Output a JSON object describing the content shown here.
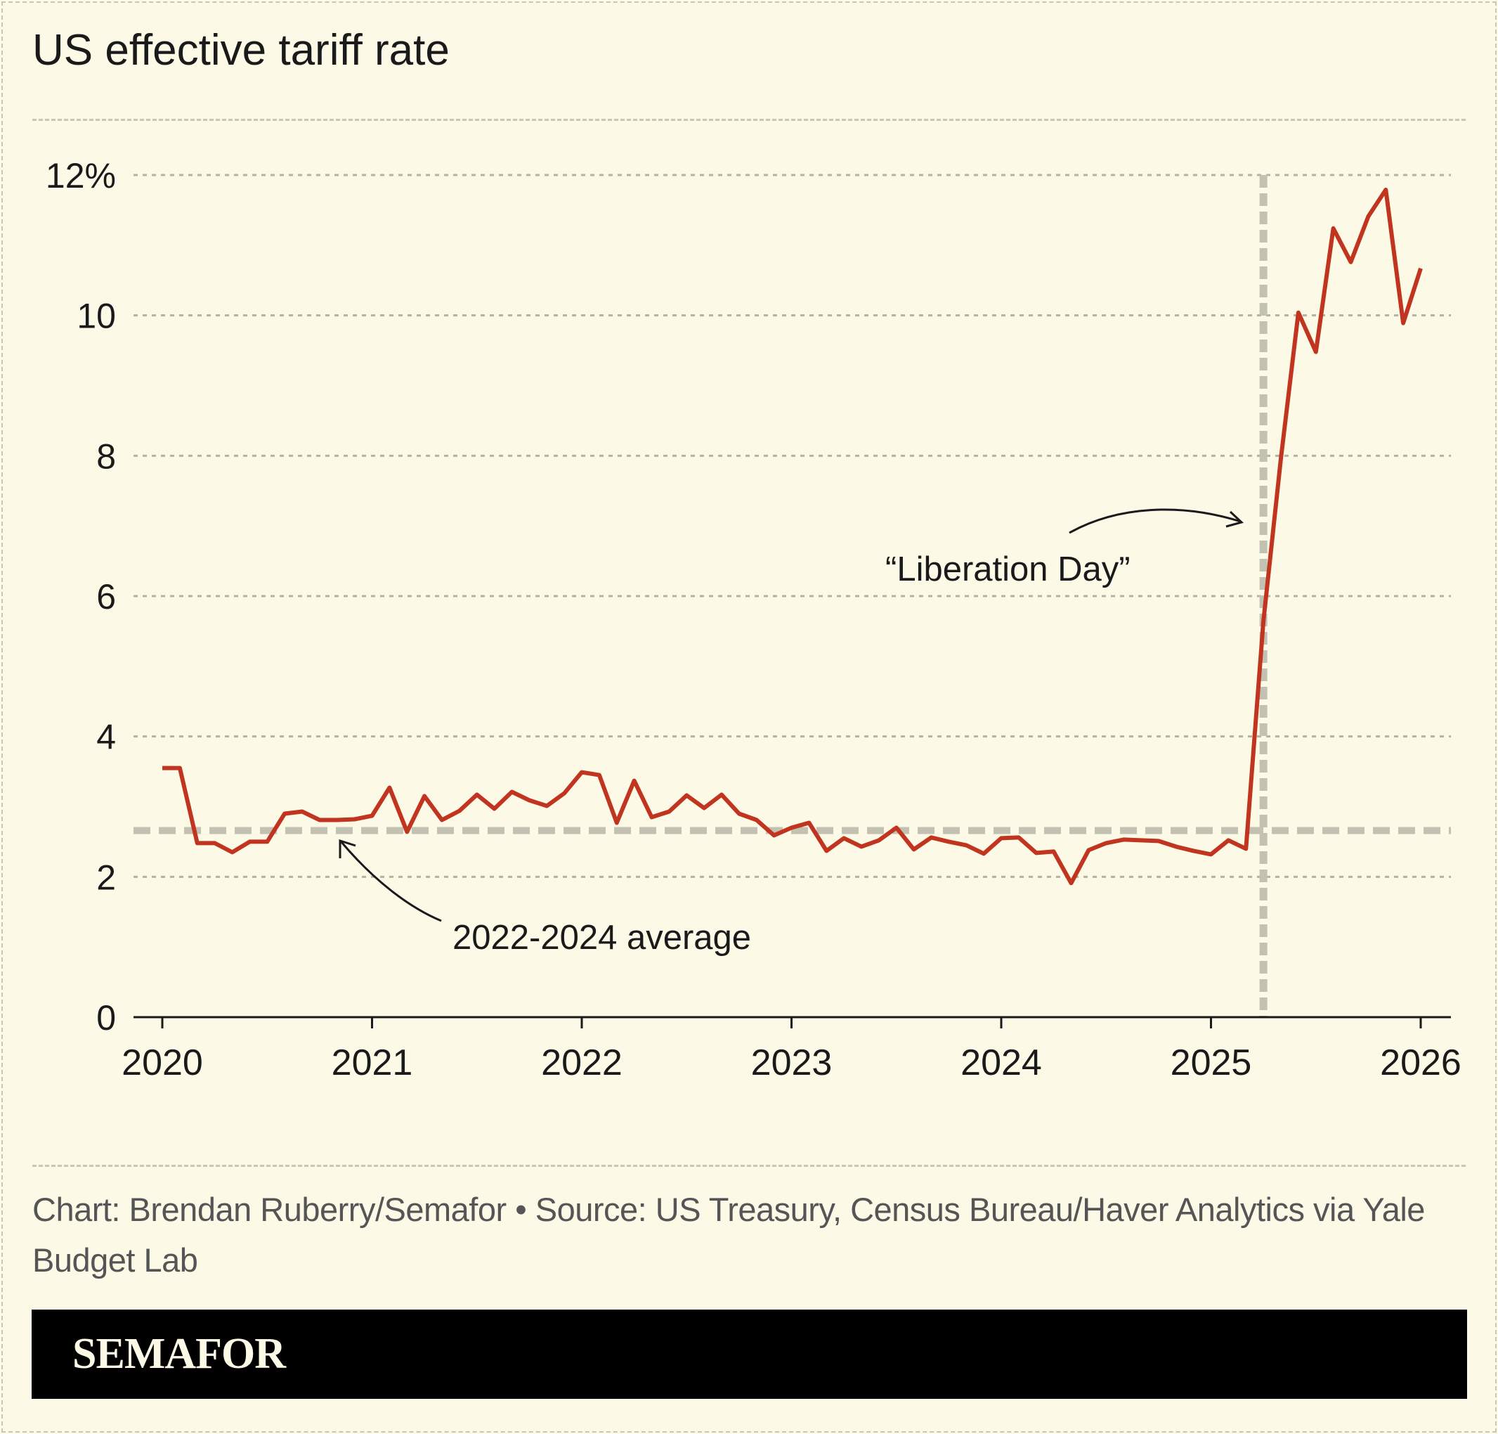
{
  "title": "US effective tariff rate",
  "footer": {
    "credit": "Chart: Brendan Ruberry/Semafor • Source: US Treasury, Census Bureau/Haver Analytics via Yale Budget Lab",
    "brand": "SEMAFOR"
  },
  "colors": {
    "background": "#fcfae6",
    "line": "#c03420",
    "reference": "#c2c1b2",
    "grid": "#b4b2a2",
    "text": "#1a1a1a"
  },
  "chart_data": {
    "type": "line",
    "title": "US effective tariff rate",
    "xlabel": "",
    "ylabel": "",
    "x_ticks": [
      "2020",
      "2021",
      "2022",
      "2023",
      "2024",
      "2025",
      "2026"
    ],
    "y_ticks": [
      "0",
      "2",
      "4",
      "6",
      "8",
      "10",
      "12%"
    ],
    "y_tick_values": [
      0,
      2,
      4,
      6,
      8,
      10,
      12
    ],
    "xlim": [
      "2020-01",
      "2026-01"
    ],
    "ylim": [
      0,
      12
    ],
    "grid": "horizontal dotted",
    "x": [
      "2020-01",
      "2020-02",
      "2020-03",
      "2020-04",
      "2020-05",
      "2020-06",
      "2020-07",
      "2020-08",
      "2020-09",
      "2020-10",
      "2020-11",
      "2020-12",
      "2021-01",
      "2021-02",
      "2021-03",
      "2021-04",
      "2021-05",
      "2021-06",
      "2021-07",
      "2021-08",
      "2021-09",
      "2021-10",
      "2021-11",
      "2021-12",
      "2022-01",
      "2022-02",
      "2022-03",
      "2022-04",
      "2022-05",
      "2022-06",
      "2022-07",
      "2022-08",
      "2022-09",
      "2022-10",
      "2022-11",
      "2022-12",
      "2023-01",
      "2023-02",
      "2023-03",
      "2023-04",
      "2023-05",
      "2023-06",
      "2023-07",
      "2023-08",
      "2023-09",
      "2023-10",
      "2023-11",
      "2023-12",
      "2024-01",
      "2024-02",
      "2024-03",
      "2024-04",
      "2024-05",
      "2024-06",
      "2024-07",
      "2024-08",
      "2024-09",
      "2024-10",
      "2024-11",
      "2024-12",
      "2025-01",
      "2025-02",
      "2025-03",
      "2025-04",
      "2025-05",
      "2025-06",
      "2025-07",
      "2025-08",
      "2025-09",
      "2025-10",
      "2025-11",
      "2025-12",
      "2026-01"
    ],
    "values": [
      3.55,
      3.55,
      2.48,
      2.48,
      2.35,
      2.5,
      2.5,
      2.9,
      2.93,
      2.81,
      2.81,
      2.82,
      2.87,
      3.27,
      2.64,
      3.15,
      2.81,
      2.94,
      3.17,
      2.97,
      3.21,
      3.09,
      3.01,
      3.19,
      3.49,
      3.45,
      2.77,
      3.37,
      2.85,
      2.93,
      3.16,
      2.98,
      3.17,
      2.9,
      2.81,
      2.59,
      2.7,
      2.77,
      2.37,
      2.55,
      2.43,
      2.52,
      2.7,
      2.39,
      2.56,
      2.5,
      2.45,
      2.33,
      2.55,
      2.56,
      2.34,
      2.36,
      1.91,
      2.38,
      2.48,
      2.53,
      2.52,
      2.51,
      2.43,
      2.37,
      2.32,
      2.52,
      2.4,
      5.64,
      7.96,
      10.04,
      9.48,
      11.24,
      10.76,
      11.41,
      11.79,
      9.89,
      10.67
    ],
    "reference_lines": [
      {
        "type": "horizontal",
        "value": 2.66,
        "label": "2022-2024 average"
      },
      {
        "type": "vertical",
        "x": "2025-04",
        "label": "“Liberation Day”"
      }
    ]
  }
}
